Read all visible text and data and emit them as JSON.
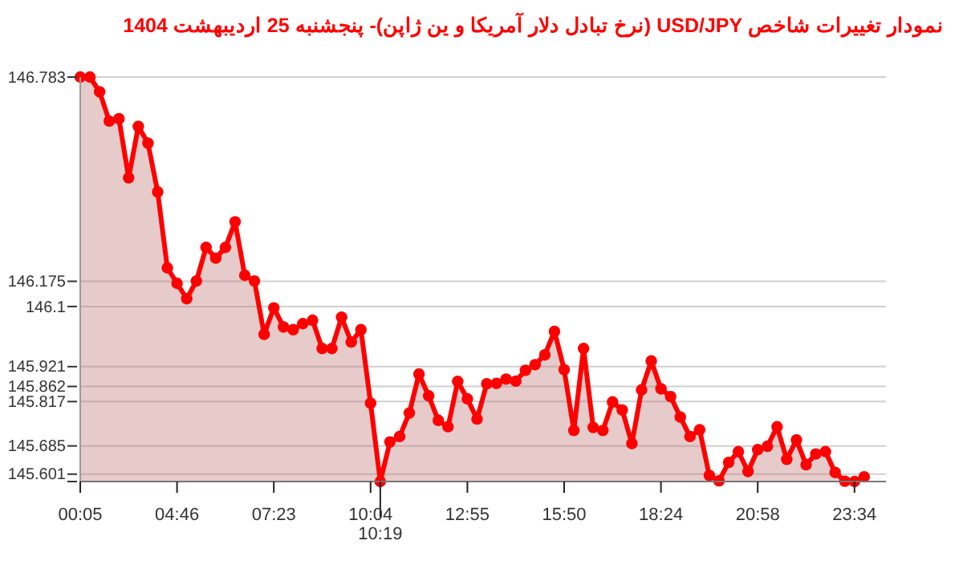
{
  "chart_data": {
    "type": "area",
    "title": "نمودار تغییرات شاخص USD/JPY (نرخ تبادل دلار آمریکا و ین ژاپن)- پنجشنبه  25 اردیبهشت 1404",
    "categories": [
      "00:05",
      null,
      null,
      null,
      null,
      null,
      null,
      null,
      null,
      null,
      "04:46",
      null,
      null,
      null,
      null,
      null,
      null,
      null,
      null,
      null,
      "07:23",
      null,
      null,
      null,
      null,
      null,
      null,
      null,
      null,
      null,
      "10:04",
      null,
      null,
      null,
      null,
      null,
      null,
      null,
      null,
      null,
      "12:55",
      null,
      null,
      null,
      null,
      null,
      null,
      null,
      null,
      null,
      "15:50",
      null,
      null,
      null,
      null,
      null,
      null,
      null,
      null,
      null,
      "18:24",
      null,
      null,
      null,
      null,
      null,
      null,
      null,
      null,
      null,
      "20:58",
      null,
      null,
      null,
      null,
      null,
      null,
      null,
      null,
      null,
      "23:34",
      null
    ],
    "series": [
      {
        "color": "#ff0000",
        "values": [
          146.783,
          146.783,
          146.739,
          146.652,
          146.659,
          146.483,
          146.636,
          146.586,
          146.441,
          146.215,
          146.169,
          146.123,
          146.176,
          146.276,
          146.244,
          146.276,
          146.352,
          146.193,
          146.176,
          146.017,
          146.096,
          146.039,
          146.031,
          146.049,
          146.059,
          145.975,
          145.975,
          146.068,
          145.994,
          146.031,
          145.812,
          145.579,
          145.697,
          145.713,
          145.783,
          145.899,
          145.834,
          145.761,
          145.742,
          145.877,
          145.825,
          145.765,
          145.87,
          145.871,
          145.884,
          145.878,
          145.91,
          145.927,
          145.956,
          146.026,
          145.912,
          145.731,
          145.975,
          145.74,
          145.731,
          145.816,
          145.792,
          145.692,
          145.852,
          145.938,
          145.855,
          145.832,
          145.771,
          145.713,
          145.733,
          145.597,
          145.581,
          145.636,
          145.668,
          145.609,
          145.674,
          145.684,
          145.742,
          145.645,
          145.703,
          145.629,
          145.661,
          145.668,
          145.606,
          145.58,
          145.579,
          145.593
        ]
      }
    ],
    "ylim": [
      145.579,
      146.783
    ],
    "yticks": [
      146.783,
      146.175,
      146.1,
      145.921,
      145.862,
      145.817,
      145.685,
      145.601,
      {
        "value": 145.579,
        "label": null
      }
    ],
    "annotations": [
      "10:19"
    ],
    "grid": "y",
    "marker": "circle",
    "line_style": "solid"
  }
}
